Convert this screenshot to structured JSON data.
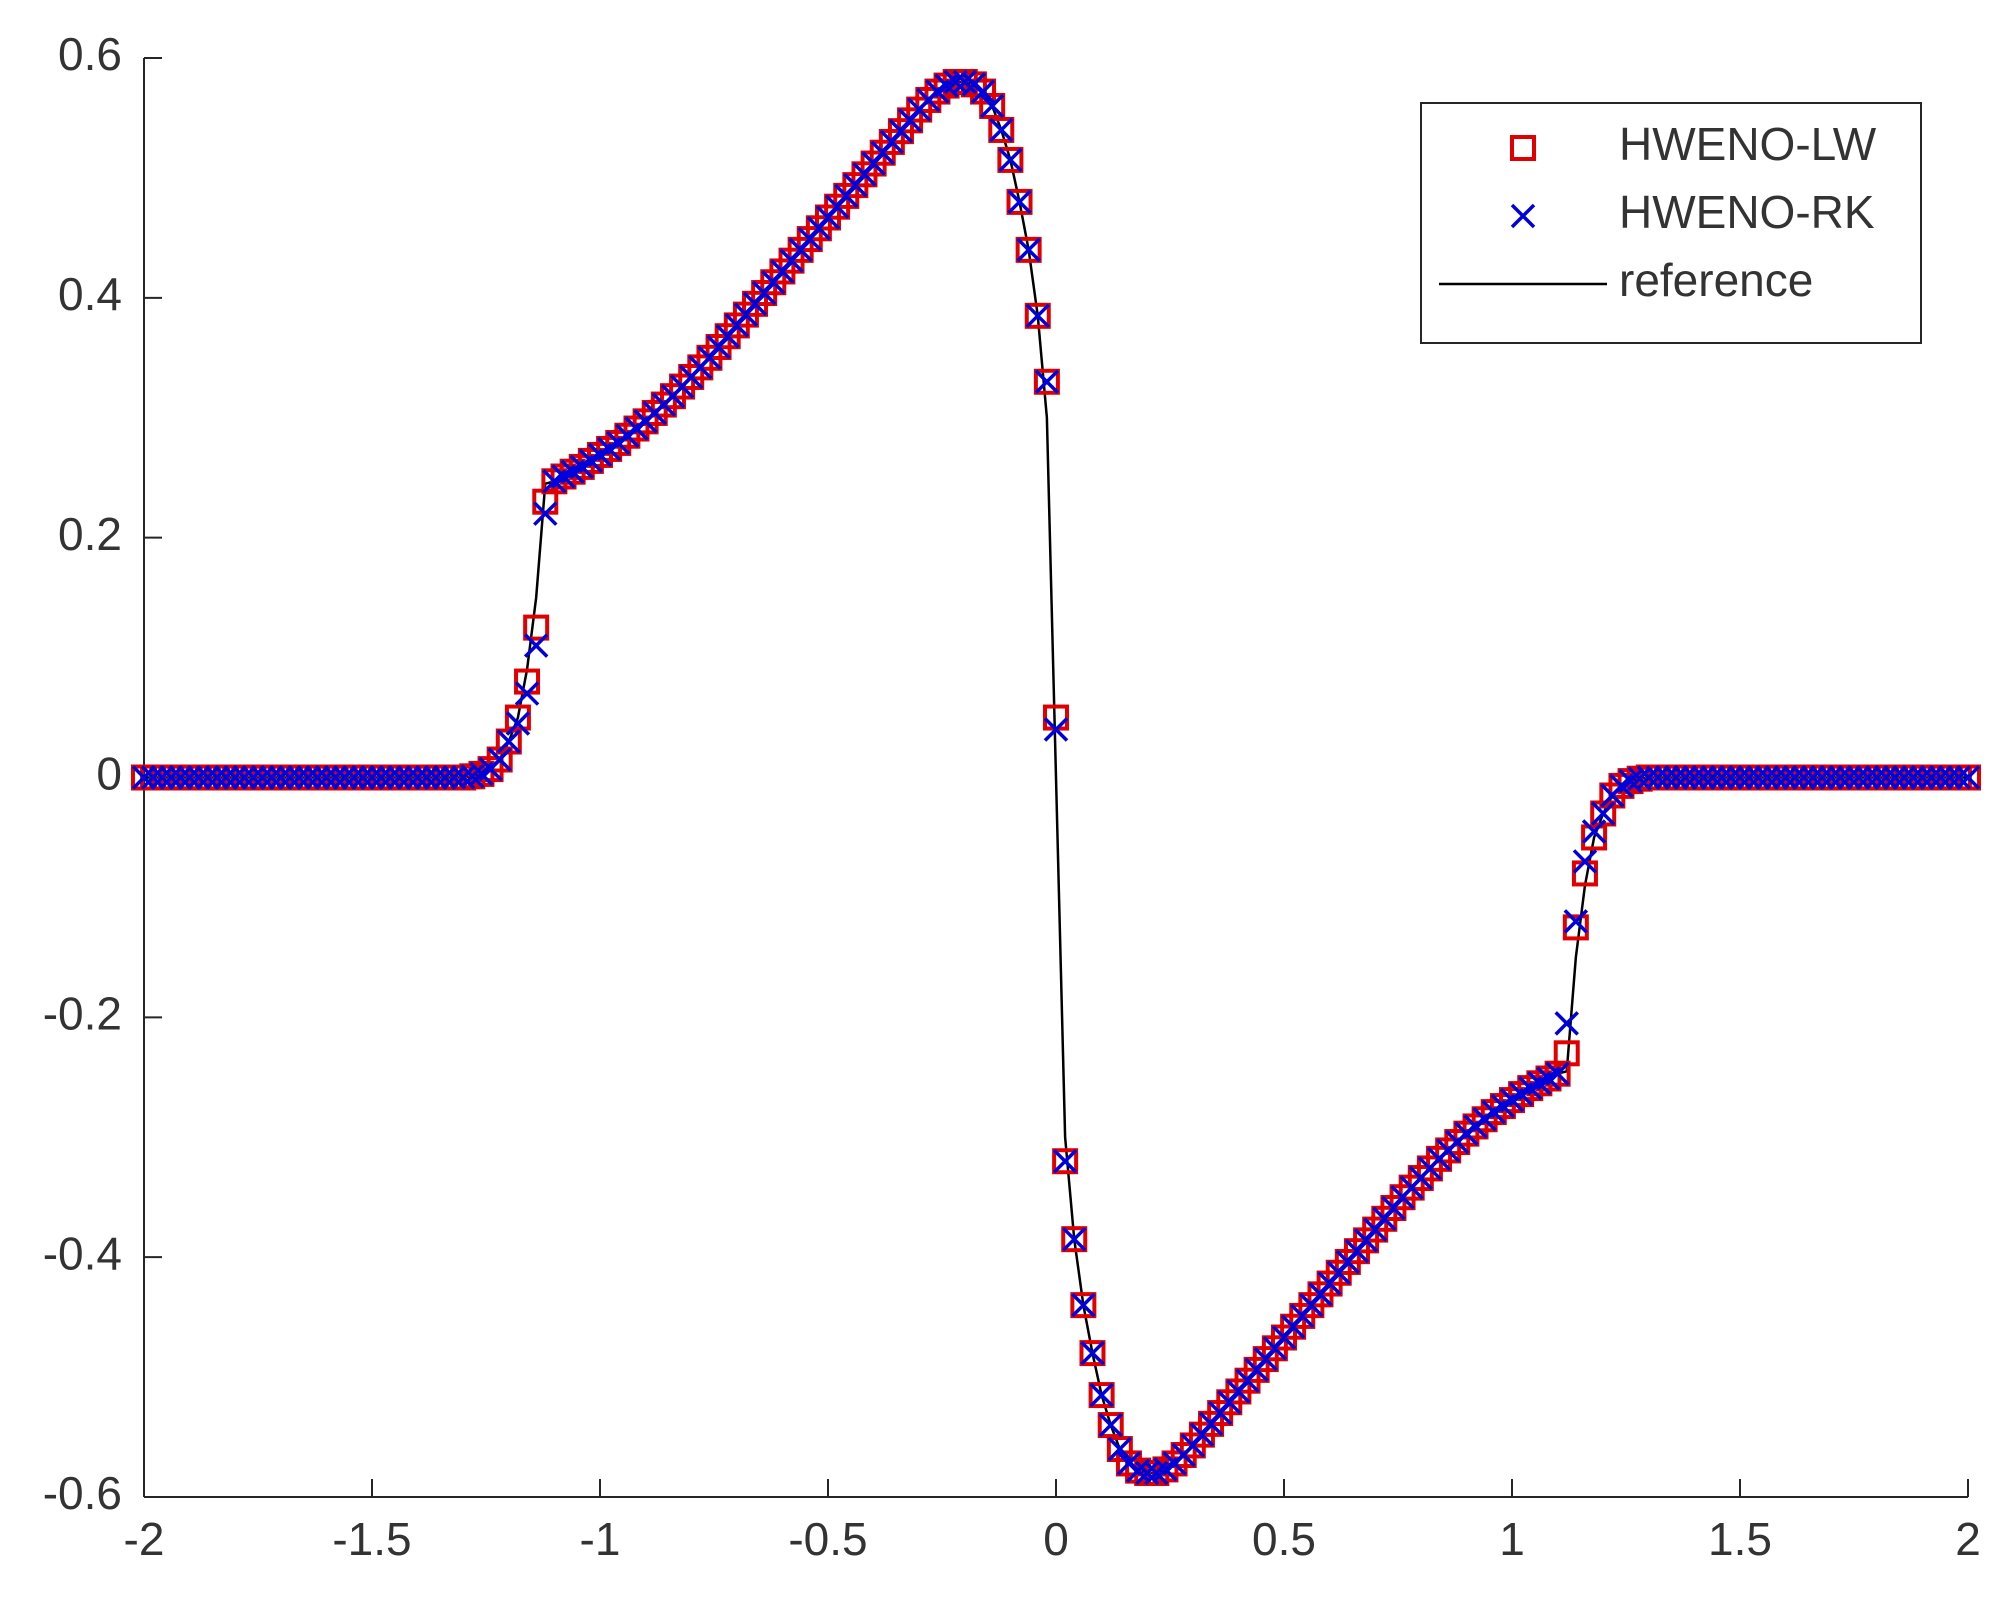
{
  "chart_data": {
    "type": "scatter",
    "x": [
      -2,
      -1.98,
      -1.96,
      -1.94,
      -1.92,
      -1.9,
      -1.88,
      -1.86,
      -1.84,
      -1.82,
      -1.8,
      -1.78,
      -1.76,
      -1.74,
      -1.72,
      -1.7,
      -1.68,
      -1.66,
      -1.64,
      -1.62,
      -1.6,
      -1.58,
      -1.56,
      -1.54,
      -1.52,
      -1.5,
      -1.48,
      -1.46,
      -1.44,
      -1.42,
      -1.4,
      -1.38,
      -1.36,
      -1.34,
      -1.32,
      -1.3,
      -1.28,
      -1.26,
      -1.24,
      -1.22,
      -1.2,
      -1.18,
      -1.16,
      -1.14,
      -1.12,
      -1.1,
      -1.08,
      -1.06,
      -1.04,
      -1.02,
      -1,
      -0.98,
      -0.96,
      -0.94,
      -0.92,
      -0.9,
      -0.88,
      -0.86,
      -0.84,
      -0.82,
      -0.8,
      -0.78,
      -0.76,
      -0.74,
      -0.72,
      -0.7,
      -0.68,
      -0.66,
      -0.64,
      -0.62,
      -0.6,
      -0.58,
      -0.56,
      -0.54,
      -0.52,
      -0.5,
      -0.48,
      -0.46,
      -0.44,
      -0.42,
      -0.4,
      -0.38,
      -0.36,
      -0.34,
      -0.32,
      -0.3,
      -0.28,
      -0.26,
      -0.24,
      -0.22,
      -0.2,
      -0.18,
      -0.16,
      -0.14,
      -0.12,
      -0.1,
      -0.08,
      -0.06,
      -0.04,
      -0.02,
      0,
      0.02,
      0.04,
      0.06,
      0.08,
      0.1,
      0.12,
      0.14,
      0.16,
      0.18,
      0.2,
      0.22,
      0.24,
      0.26,
      0.28,
      0.3,
      0.32,
      0.34,
      0.36,
      0.38,
      0.4,
      0.42,
      0.44,
      0.46,
      0.48,
      0.5,
      0.52,
      0.54,
      0.56,
      0.58,
      0.6,
      0.62,
      0.64,
      0.66,
      0.68,
      0.7,
      0.72,
      0.74,
      0.76,
      0.78,
      0.8,
      0.82,
      0.84,
      0.86,
      0.88,
      0.9,
      0.92,
      0.94,
      0.96,
      0.98,
      1,
      1.02,
      1.04,
      1.06,
      1.08,
      1.1,
      1.12,
      1.14,
      1.16,
      1.18,
      1.2,
      1.22,
      1.24,
      1.26,
      1.28,
      1.3,
      1.32,
      1.34,
      1.36,
      1.38,
      1.4,
      1.42,
      1.44,
      1.46,
      1.48,
      1.5,
      1.52,
      1.54,
      1.56,
      1.58,
      1.6,
      1.62,
      1.64,
      1.66,
      1.68,
      1.7,
      1.72,
      1.74,
      1.76,
      1.78,
      1.8,
      1.82,
      1.84,
      1.86,
      1.88,
      1.9,
      1.92,
      1.94,
      1.96,
      1.98,
      2
    ],
    "series": [
      {
        "name": "HWENO-LW",
        "color": "#e00000",
        "marker": "square",
        "values": [
          0,
          0,
          0,
          0,
          0,
          0,
          0,
          0,
          0,
          0,
          0,
          0,
          0,
          0,
          0,
          0,
          0,
          0,
          0,
          0,
          0,
          0,
          0,
          0,
          0,
          0,
          0,
          0,
          0,
          0,
          0,
          0,
          0,
          0,
          0,
          0,
          0.001,
          0.003,
          0.007,
          0.015,
          0.03,
          0.05,
          0.08,
          0.125,
          0.23,
          0.247,
          0.251,
          0.255,
          0.259,
          0.264,
          0.269,
          0.274,
          0.279,
          0.285,
          0.291,
          0.297,
          0.304,
          0.311,
          0.318,
          0.326,
          0.334,
          0.342,
          0.35,
          0.359,
          0.368,
          0.377,
          0.386,
          0.395,
          0.404,
          0.413,
          0.422,
          0.431,
          0.44,
          0.449,
          0.458,
          0.467,
          0.476,
          0.485,
          0.494,
          0.503,
          0.512,
          0.521,
          0.53,
          0.539,
          0.548,
          0.557,
          0.565,
          0.572,
          0.577,
          0.58,
          0.58,
          0.578,
          0.572,
          0.56,
          0.54,
          0.515,
          0.48,
          0.44,
          0.385,
          0.33,
          0.05,
          -0.32,
          -0.385,
          -0.44,
          -0.48,
          -0.515,
          -0.54,
          -0.56,
          -0.572,
          -0.578,
          -0.58,
          -0.58,
          -0.577,
          -0.572,
          -0.565,
          -0.557,
          -0.548,
          -0.539,
          -0.53,
          -0.521,
          -0.512,
          -0.503,
          -0.494,
          -0.485,
          -0.476,
          -0.467,
          -0.458,
          -0.449,
          -0.44,
          -0.431,
          -0.422,
          -0.413,
          -0.404,
          -0.395,
          -0.386,
          -0.377,
          -0.368,
          -0.359,
          -0.35,
          -0.342,
          -0.334,
          -0.326,
          -0.318,
          -0.311,
          -0.304,
          -0.297,
          -0.291,
          -0.285,
          -0.279,
          -0.274,
          -0.269,
          -0.264,
          -0.259,
          -0.255,
          -0.251,
          -0.247,
          -0.23,
          -0.125,
          -0.08,
          -0.05,
          -0.03,
          -0.015,
          -0.007,
          -0.003,
          -0.001,
          0,
          0,
          0,
          0,
          0,
          0,
          0,
          0,
          0,
          0,
          0,
          0,
          0,
          0,
          0,
          0,
          0,
          0,
          0,
          0,
          0,
          0,
          0,
          0,
          0,
          0,
          0,
          0,
          0,
          0,
          0,
          0,
          0,
          0,
          0,
          0
        ]
      },
      {
        "name": "HWENO-RK",
        "color": "#0000dd",
        "marker": "x",
        "values": [
          0,
          0,
          0,
          0,
          0,
          0,
          0,
          0,
          0,
          0,
          0,
          0,
          0,
          0,
          0,
          0,
          0,
          0,
          0,
          0,
          0,
          0,
          0,
          0,
          0,
          0,
          0,
          0,
          0,
          0,
          0,
          0,
          0,
          0,
          0,
          0,
          0.001,
          0.003,
          0.007,
          0.015,
          0.03,
          0.045,
          0.07,
          0.11,
          0.22,
          0.247,
          0.251,
          0.255,
          0.259,
          0.264,
          0.269,
          0.274,
          0.279,
          0.285,
          0.291,
          0.297,
          0.304,
          0.311,
          0.318,
          0.326,
          0.334,
          0.342,
          0.35,
          0.359,
          0.368,
          0.377,
          0.386,
          0.395,
          0.404,
          0.413,
          0.422,
          0.431,
          0.44,
          0.449,
          0.458,
          0.467,
          0.476,
          0.485,
          0.494,
          0.503,
          0.512,
          0.521,
          0.53,
          0.539,
          0.548,
          0.557,
          0.565,
          0.572,
          0.577,
          0.58,
          0.58,
          0.578,
          0.572,
          0.56,
          0.54,
          0.515,
          0.48,
          0.44,
          0.385,
          0.33,
          0.04,
          -0.32,
          -0.385,
          -0.44,
          -0.48,
          -0.515,
          -0.54,
          -0.56,
          -0.572,
          -0.578,
          -0.58,
          -0.58,
          -0.577,
          -0.572,
          -0.565,
          -0.557,
          -0.548,
          -0.539,
          -0.53,
          -0.521,
          -0.512,
          -0.503,
          -0.494,
          -0.485,
          -0.476,
          -0.467,
          -0.458,
          -0.449,
          -0.44,
          -0.431,
          -0.422,
          -0.413,
          -0.404,
          -0.395,
          -0.386,
          -0.377,
          -0.368,
          -0.359,
          -0.35,
          -0.342,
          -0.334,
          -0.326,
          -0.318,
          -0.311,
          -0.304,
          -0.297,
          -0.291,
          -0.285,
          -0.279,
          -0.274,
          -0.269,
          -0.264,
          -0.259,
          -0.255,
          -0.251,
          -0.247,
          -0.205,
          -0.12,
          -0.07,
          -0.045,
          -0.03,
          -0.015,
          -0.007,
          -0.003,
          -0.001,
          0,
          0,
          0,
          0,
          0,
          0,
          0,
          0,
          0,
          0,
          0,
          0,
          0,
          0,
          0,
          0,
          0,
          0,
          0,
          0,
          0,
          0,
          0,
          0,
          0,
          0,
          0,
          0,
          0,
          0,
          0,
          0,
          0,
          0,
          0,
          0
        ]
      },
      {
        "name": "reference",
        "color": "#000000",
        "marker": "line",
        "values": [
          0,
          0,
          0,
          0,
          0,
          0,
          0,
          0,
          0,
          0,
          0,
          0,
          0,
          0,
          0,
          0,
          0,
          0,
          0,
          0,
          0,
          0,
          0,
          0,
          0,
          0,
          0,
          0,
          0,
          0,
          0,
          0,
          0,
          0,
          0,
          0,
          0.001,
          0.003,
          0.007,
          0.015,
          0.03,
          0.05,
          0.09,
          0.15,
          0.245,
          0.247,
          0.251,
          0.255,
          0.259,
          0.264,
          0.269,
          0.274,
          0.279,
          0.285,
          0.291,
          0.297,
          0.304,
          0.311,
          0.318,
          0.326,
          0.334,
          0.342,
          0.35,
          0.359,
          0.368,
          0.377,
          0.386,
          0.395,
          0.404,
          0.413,
          0.422,
          0.431,
          0.44,
          0.449,
          0.458,
          0.467,
          0.476,
          0.485,
          0.494,
          0.503,
          0.512,
          0.521,
          0.53,
          0.539,
          0.548,
          0.557,
          0.565,
          0.572,
          0.577,
          0.58,
          0.58,
          0.578,
          0.572,
          0.56,
          0.54,
          0.515,
          0.48,
          0.44,
          0.385,
          0.3,
          0,
          -0.3,
          -0.385,
          -0.44,
          -0.48,
          -0.515,
          -0.54,
          -0.56,
          -0.572,
          -0.578,
          -0.58,
          -0.58,
          -0.577,
          -0.572,
          -0.565,
          -0.557,
          -0.548,
          -0.539,
          -0.53,
          -0.521,
          -0.512,
          -0.503,
          -0.494,
          -0.485,
          -0.476,
          -0.467,
          -0.458,
          -0.449,
          -0.44,
          -0.431,
          -0.422,
          -0.413,
          -0.404,
          -0.395,
          -0.386,
          -0.377,
          -0.368,
          -0.359,
          -0.35,
          -0.342,
          -0.334,
          -0.326,
          -0.318,
          -0.311,
          -0.304,
          -0.297,
          -0.291,
          -0.285,
          -0.279,
          -0.274,
          -0.269,
          -0.264,
          -0.259,
          -0.255,
          -0.251,
          -0.247,
          -0.245,
          -0.15,
          -0.09,
          -0.05,
          -0.03,
          -0.015,
          -0.007,
          -0.003,
          -0.001,
          0,
          0,
          0,
          0,
          0,
          0,
          0,
          0,
          0,
          0,
          0,
          0,
          0,
          0,
          0,
          0,
          0,
          0,
          0,
          0,
          0,
          0,
          0,
          0,
          0,
          0,
          0,
          0,
          0,
          0,
          0,
          0,
          0,
          0,
          0,
          0
        ]
      }
    ],
    "xlim": [
      -2,
      2
    ],
    "xticks": [
      -2,
      -1.5,
      -1,
      -0.5,
      0,
      0.5,
      1,
      1.5,
      2
    ],
    "ylim": [
      -0.6,
      0.6
    ],
    "yticks": [
      -0.6,
      -0.4,
      -0.2,
      0,
      0.2,
      0.4,
      0.6
    ],
    "grid": false,
    "legend": "northeast"
  }
}
